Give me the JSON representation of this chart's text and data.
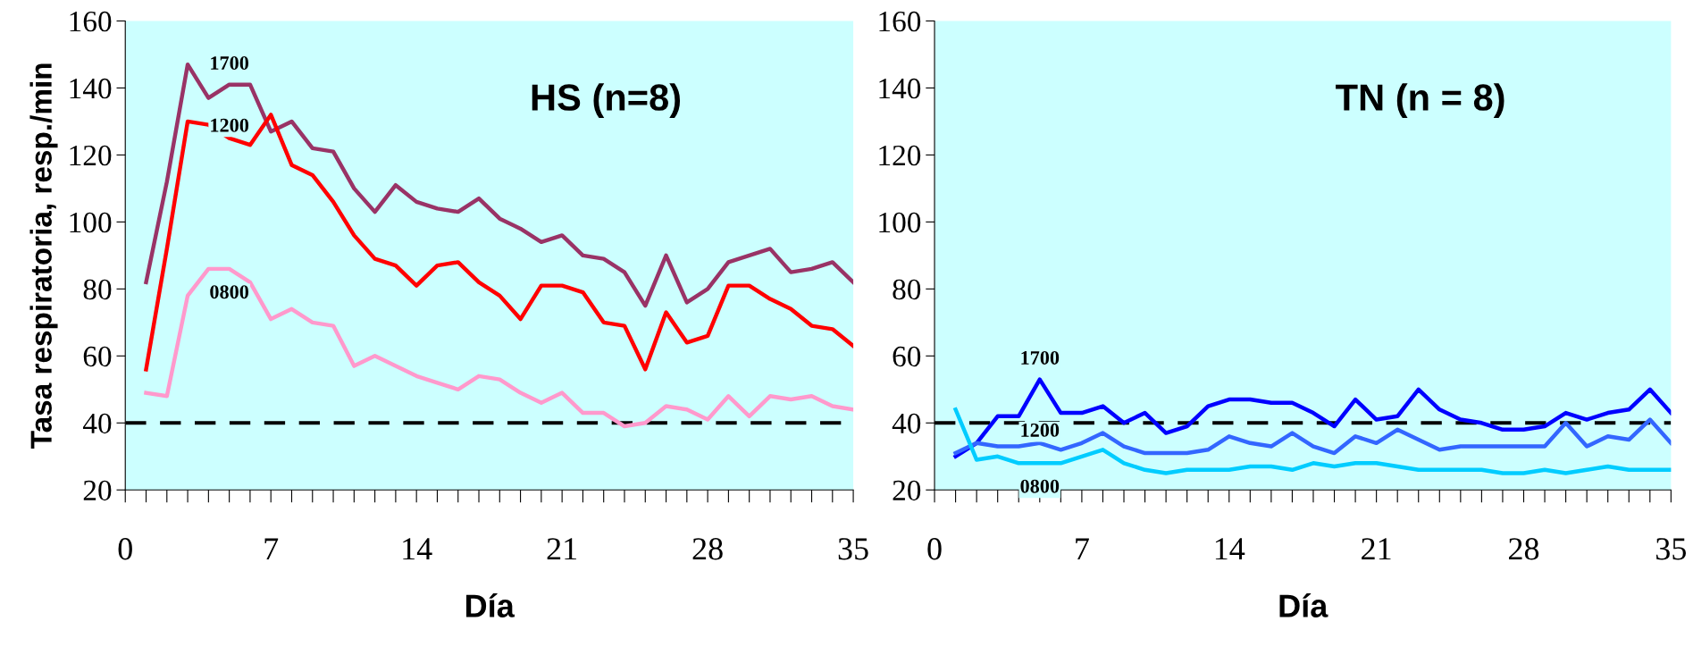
{
  "chart_data": [
    {
      "type": "line",
      "title": "HS (n=8)",
      "xlabel": "Día",
      "ylabel": "Tasa respiratoria, resp./min",
      "x": [
        1,
        2,
        3,
        4,
        5,
        6,
        7,
        8,
        9,
        10,
        11,
        12,
        13,
        14,
        15,
        16,
        17,
        18,
        19,
        20,
        21,
        22,
        23,
        24,
        25,
        26,
        27,
        28,
        29,
        30,
        31,
        32,
        33,
        34,
        35
      ],
      "series": [
        {
          "name": "1700",
          "color": "#993366",
          "values": [
            82,
            112,
            147,
            137,
            141,
            141,
            127,
            130,
            122,
            121,
            110,
            103,
            111,
            106,
            104,
            103,
            107,
            101,
            98,
            94,
            96,
            90,
            89,
            85,
            75,
            90,
            76,
            80,
            88,
            90,
            92,
            85,
            86,
            88,
            82
          ]
        },
        {
          "name": "1200",
          "color": "#ff0000",
          "values": [
            56,
            92,
            130,
            129,
            125,
            123,
            132,
            117,
            114,
            106,
            96,
            89,
            87,
            81,
            87,
            88,
            82,
            78,
            71,
            81,
            81,
            79,
            70,
            69,
            56,
            73,
            64,
            66,
            81,
            81,
            77,
            74,
            69,
            68,
            63
          ]
        },
        {
          "name": "0800",
          "color": "#ff99cc",
          "values": [
            49,
            48,
            78,
            86,
            86,
            82,
            71,
            74,
            70,
            69,
            57,
            60,
            57,
            54,
            52,
            50,
            54,
            53,
            49,
            46,
            49,
            43,
            43,
            39,
            40,
            45,
            44,
            41,
            48,
            42,
            48,
            47,
            48,
            45,
            44
          ]
        }
      ],
      "ref_lines": [
        {
          "axis": "y",
          "value": 40,
          "color": "#000000",
          "line_style": "dashed"
        }
      ],
      "xlim": [
        0,
        35
      ],
      "ylim": [
        20,
        160
      ],
      "xticks": [
        0,
        {
          "value": 1,
          "label": null
        },
        {
          "value": 2,
          "label": null
        },
        {
          "value": 3,
          "label": null
        },
        {
          "value": 4,
          "label": null
        },
        {
          "value": 5,
          "label": null
        },
        {
          "value": 6,
          "label": null
        },
        7,
        {
          "value": 8,
          "label": null
        },
        {
          "value": 9,
          "label": null
        },
        {
          "value": 10,
          "label": null
        },
        {
          "value": 11,
          "label": null
        },
        {
          "value": 12,
          "label": null
        },
        {
          "value": 13,
          "label": null
        },
        14,
        {
          "value": 15,
          "label": null
        },
        {
          "value": 16,
          "label": null
        },
        {
          "value": 17,
          "label": null
        },
        {
          "value": 18,
          "label": null
        },
        {
          "value": 19,
          "label": null
        },
        {
          "value": 20,
          "label": null
        },
        21,
        {
          "value": 22,
          "label": null
        },
        {
          "value": 23,
          "label": null
        },
        {
          "value": 24,
          "label": null
        },
        {
          "value": 25,
          "label": null
        },
        {
          "value": 26,
          "label": null
        },
        {
          "value": 27,
          "label": null
        },
        28,
        {
          "value": 29,
          "label": null
        },
        {
          "value": 30,
          "label": null
        },
        {
          "value": 31,
          "label": null
        },
        {
          "value": 32,
          "label": null
        },
        {
          "value": 33,
          "label": null
        },
        {
          "value": 34,
          "label": null
        },
        35
      ],
      "yticks": [
        20,
        40,
        60,
        80,
        100,
        120,
        140,
        160
      ],
      "grid": false,
      "marker": "none",
      "line_style": "solid"
    },
    {
      "type": "line",
      "title": "TN (n = 8)",
      "xlabel": "Día",
      "x": [
        1,
        2,
        3,
        4,
        5,
        6,
        7,
        8,
        9,
        10,
        11,
        12,
        13,
        14,
        15,
        16,
        17,
        18,
        19,
        20,
        21,
        22,
        23,
        24,
        25,
        26,
        27,
        28,
        29,
        30,
        31,
        32,
        33,
        34,
        35
      ],
      "series": [
        {
          "name": "1700",
          "color": "#0000ff",
          "values": [
            30,
            34,
            42,
            42,
            53,
            43,
            43,
            45,
            40,
            43,
            37,
            39,
            45,
            47,
            47,
            46,
            46,
            43,
            39,
            47,
            41,
            42,
            50,
            44,
            41,
            40,
            38,
            38,
            39,
            43,
            41,
            43,
            44,
            50,
            43
          ]
        },
        {
          "name": "1200",
          "color": "#3366ff",
          "values": [
            31,
            34,
            33,
            33,
            34,
            32,
            34,
            37,
            33,
            31,
            31,
            31,
            32,
            36,
            34,
            33,
            37,
            33,
            31,
            36,
            34,
            38,
            35,
            32,
            33,
            33,
            33,
            33,
            33,
            40,
            33,
            36,
            35,
            41,
            34
          ]
        },
        {
          "name": "0800",
          "color": "#00ccff",
          "values": [
            44,
            29,
            30,
            28,
            28,
            28,
            30,
            32,
            28,
            26,
            25,
            26,
            26,
            26,
            27,
            27,
            26,
            28,
            27,
            28,
            28,
            27,
            26,
            26,
            26,
            26,
            25,
            25,
            26,
            25,
            26,
            27,
            26,
            26,
            26
          ]
        }
      ],
      "ref_lines": [
        {
          "axis": "y",
          "value": 40,
          "color": "#000000",
          "line_style": "dashed"
        }
      ],
      "xlim": [
        0,
        35
      ],
      "ylim": [
        20,
        160
      ],
      "xticks": [
        0,
        {
          "value": 1,
          "label": null
        },
        {
          "value": 2,
          "label": null
        },
        {
          "value": 3,
          "label": null
        },
        {
          "value": 4,
          "label": null
        },
        {
          "value": 5,
          "label": null
        },
        {
          "value": 6,
          "label": null
        },
        7,
        {
          "value": 8,
          "label": null
        },
        {
          "value": 9,
          "label": null
        },
        {
          "value": 10,
          "label": null
        },
        {
          "value": 11,
          "label": null
        },
        {
          "value": 12,
          "label": null
        },
        {
          "value": 13,
          "label": null
        },
        14,
        {
          "value": 15,
          "label": null
        },
        {
          "value": 16,
          "label": null
        },
        {
          "value": 17,
          "label": null
        },
        {
          "value": 18,
          "label": null
        },
        {
          "value": 19,
          "label": null
        },
        {
          "value": 20,
          "label": null
        },
        21,
        {
          "value": 22,
          "label": null
        },
        {
          "value": 23,
          "label": null
        },
        {
          "value": 24,
          "label": null
        },
        {
          "value": 25,
          "label": null
        },
        {
          "value": 26,
          "label": null
        },
        {
          "value": 27,
          "label": null
        },
        28,
        {
          "value": 29,
          "label": null
        },
        {
          "value": 30,
          "label": null
        },
        {
          "value": 31,
          "label": null
        },
        {
          "value": 32,
          "label": null
        },
        {
          "value": 33,
          "label": null
        },
        {
          "value": 34,
          "label": null
        },
        35
      ],
      "yticks": [
        20,
        40,
        60,
        80,
        100,
        120,
        140,
        160
      ],
      "grid": false,
      "marker": "none",
      "line_style": "solid"
    }
  ]
}
